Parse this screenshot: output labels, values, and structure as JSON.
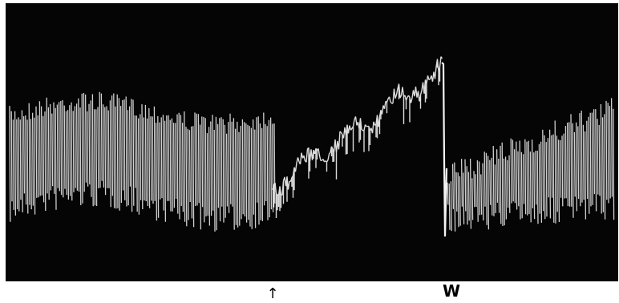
{
  "labels": {
    "arrow": "↑",
    "marker": "W"
  }
}
